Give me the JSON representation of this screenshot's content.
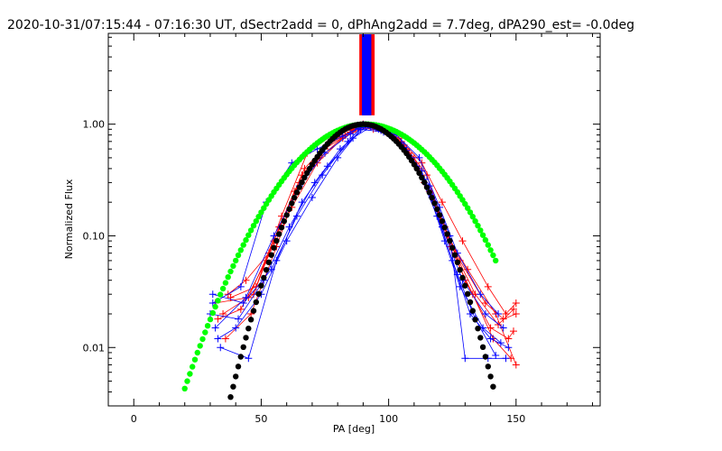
{
  "chart_data": {
    "type": "scatter",
    "title": "2020-10-31/07:15:44 - 07:16:30 UT, dSectr2add = 0, dPhAng2add = 7.7deg, dPA290_est= -0.0deg",
    "xlabel": "PA [deg]",
    "ylabel": "Normalized Flux",
    "xlim": [
      -10,
      183
    ],
    "ylim": [
      0.003,
      6.5
    ],
    "yscale": "log",
    "x_ticks": [
      0,
      50,
      100,
      150
    ],
    "x_tick_labels": [
      "0",
      "50",
      "100",
      "150"
    ],
    "y_ticks": [
      0.01,
      0.1,
      1.0
    ],
    "y_tick_labels": [
      "0.01",
      "0.10",
      "1.00"
    ],
    "colors": {
      "red": "#ff0000",
      "blue": "#0000ff",
      "green": "#00ff00",
      "black": "#000000"
    },
    "bars": [
      {
        "name": "red-bar",
        "x_from": 88.5,
        "x_to": 94.5,
        "y_bottom": 1.2,
        "color": "#ff0000"
      },
      {
        "name": "blue-bar",
        "x_from": 89.5,
        "x_to": 93.2,
        "y_bottom": 1.2,
        "color": "#0000ff"
      }
    ],
    "model_curves": [
      {
        "name": "green-model",
        "color": "#00ff00",
        "center": 91,
        "sigma": 21.5,
        "x_from": 20,
        "x_to": 142
      },
      {
        "name": "black-model",
        "color": "#000000",
        "center": 90,
        "sigma": 15.5,
        "x_from": 36,
        "x_to": 141
      }
    ],
    "series": [
      {
        "name": "red-1",
        "color": "#ff0000",
        "x": [
          32,
          45,
          55,
          65,
          75,
          85,
          90,
          95,
          105,
          112,
          120,
          128,
          138,
          145,
          150
        ],
        "y": [
          0.025,
          0.028,
          0.09,
          0.3,
          0.6,
          0.85,
          1.0,
          0.92,
          0.7,
          0.4,
          0.15,
          0.06,
          0.025,
          0.018,
          0.02
        ]
      },
      {
        "name": "red-2",
        "color": "#ff0000",
        "x": [
          35,
          47,
          57,
          67,
          77,
          87,
          93,
          97,
          107,
          114,
          122,
          130,
          140,
          147,
          149
        ],
        "y": [
          0.02,
          0.03,
          0.12,
          0.4,
          0.7,
          0.9,
          0.97,
          0.88,
          0.6,
          0.3,
          0.12,
          0.04,
          0.015,
          0.012,
          0.014
        ]
      },
      {
        "name": "red-3",
        "color": "#ff0000",
        "x": [
          37,
          44,
          53,
          63,
          73,
          83,
          89,
          96,
          104,
          113,
          121,
          129,
          139,
          146,
          150
        ],
        "y": [
          0.03,
          0.04,
          0.07,
          0.25,
          0.5,
          0.8,
          0.95,
          0.93,
          0.75,
          0.45,
          0.2,
          0.09,
          0.035,
          0.02,
          0.025
        ]
      },
      {
        "name": "red-4",
        "color": "#ff0000",
        "x": [
          33,
          42,
          52,
          62,
          72,
          82,
          91,
          99,
          108,
          116,
          124,
          133,
          141,
          148
        ],
        "y": [
          0.018,
          0.022,
          0.06,
          0.18,
          0.45,
          0.75,
          0.96,
          0.85,
          0.55,
          0.25,
          0.08,
          0.03,
          0.012,
          0.008
        ]
      },
      {
        "name": "red-5",
        "color": "#ff0000",
        "x": [
          38,
          48,
          58,
          68,
          78,
          88,
          94,
          102,
          110,
          118,
          126,
          134,
          143,
          149
        ],
        "y": [
          0.028,
          0.035,
          0.15,
          0.55,
          0.8,
          0.93,
          0.9,
          0.8,
          0.5,
          0.2,
          0.07,
          0.03,
          0.016,
          0.022
        ]
      },
      {
        "name": "red-6",
        "color": "#ff0000",
        "x": [
          36,
          46,
          56,
          66,
          76,
          86,
          92,
          98,
          106,
          115,
          123,
          131,
          142,
          150
        ],
        "y": [
          0.012,
          0.02,
          0.08,
          0.35,
          0.65,
          0.88,
          0.98,
          0.87,
          0.65,
          0.35,
          0.1,
          0.05,
          0.02,
          0.007
        ]
      },
      {
        "name": "blue-1",
        "color": "#0000ff",
        "x": [
          31,
          43,
          54,
          64,
          74,
          84,
          90,
          96,
          105,
          113,
          121,
          129,
          138,
          145
        ],
        "y": [
          0.03,
          0.025,
          0.05,
          0.15,
          0.35,
          0.7,
          0.97,
          0.9,
          0.68,
          0.38,
          0.12,
          0.04,
          0.02,
          0.015
        ]
      },
      {
        "name": "blue-2",
        "color": "#0000ff",
        "x": [
          30,
          41,
          51,
          61,
          71,
          81,
          91,
          100,
          109,
          117,
          125,
          132,
          140,
          147
        ],
        "y": [
          0.02,
          0.018,
          0.04,
          0.12,
          0.3,
          0.6,
          0.94,
          0.82,
          0.5,
          0.22,
          0.06,
          0.02,
          0.012,
          0.01
        ]
      },
      {
        "name": "blue-3",
        "color": "#0000ff",
        "x": [
          32,
          44,
          55,
          65,
          75,
          85,
          90,
          97,
          106,
          114,
          122,
          128,
          137,
          144
        ],
        "y": [
          0.015,
          0.028,
          0.1,
          0.28,
          0.55,
          0.82,
          0.99,
          0.88,
          0.62,
          0.32,
          0.09,
          0.035,
          0.015,
          0.011
        ]
      },
      {
        "name": "blue-4",
        "color": "#0000ff",
        "x": [
          34,
          45,
          56,
          66,
          76,
          86,
          93,
          101,
          111,
          119,
          127,
          134,
          142
        ],
        "y": [
          0.01,
          0.008,
          0.06,
          0.2,
          0.42,
          0.75,
          0.95,
          0.78,
          0.42,
          0.15,
          0.045,
          0.018,
          0.0085
        ]
      },
      {
        "name": "blue-5",
        "color": "#0000ff",
        "x": [
          31,
          42,
          52,
          62,
          72,
          82,
          88,
          95,
          103,
          112,
          120,
          127,
          136,
          143
        ],
        "y": [
          0.025,
          0.035,
          0.2,
          0.45,
          0.6,
          0.78,
          0.92,
          0.96,
          0.8,
          0.5,
          0.18,
          0.07,
          0.03,
          0.02
        ]
      },
      {
        "name": "blue-6",
        "color": "#0000ff",
        "x": [
          33,
          40,
          50,
          60,
          70,
          80,
          89,
          98,
          107,
          116,
          124,
          130,
          139,
          146
        ],
        "y": [
          0.012,
          0.015,
          0.03,
          0.09,
          0.22,
          0.5,
          0.9,
          0.85,
          0.58,
          0.28,
          0.1,
          0.008,
          0.008,
          0.008
        ]
      }
    ]
  }
}
